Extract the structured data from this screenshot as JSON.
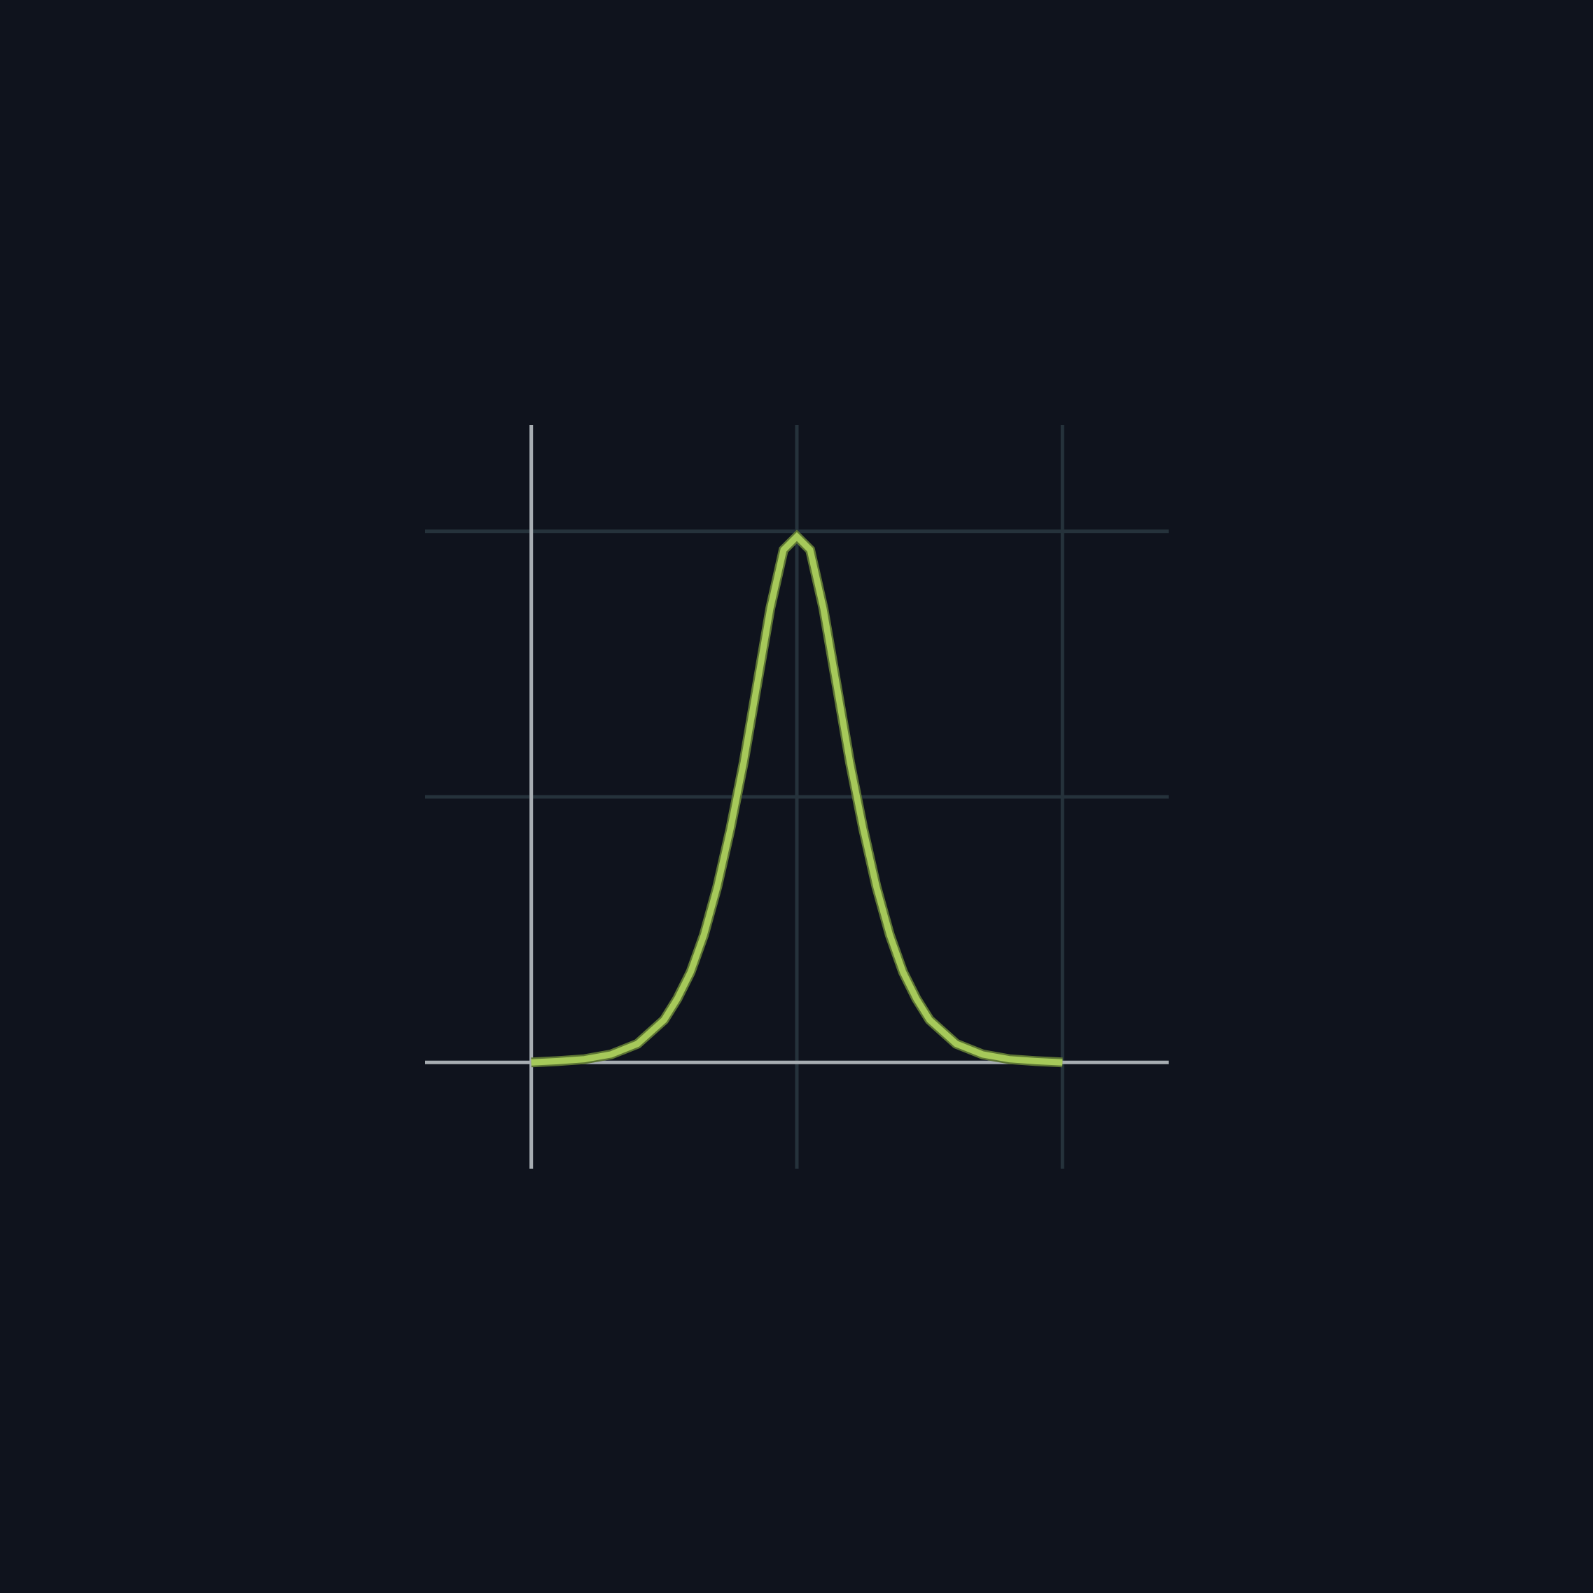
{
  "colors": {
    "background": "#0f131d",
    "grid": "#25323b",
    "axis": "#a7adb2",
    "curve": "#a6c95a",
    "curve_edge": "#5d7534"
  },
  "chart_data": {
    "type": "line",
    "title": "",
    "xlabel": "",
    "ylabel": "",
    "grid": true,
    "xlim": [
      -1.4,
      1.4
    ],
    "ylim": [
      -0.4,
      2.4
    ],
    "x_gridlines": [
      0,
      1,
      2
    ],
    "y_gridlines": [
      0,
      1,
      2
    ],
    "x_axis_at": 0,
    "y_axis_at": -1,
    "series": [
      {
        "x": [
          -1,
          -0.9,
          -0.8,
          -0.7,
          -0.6,
          -0.5,
          -0.45,
          -0.4,
          -0.35,
          -0.3,
          -0.25,
          -0.2,
          -0.15,
          -0.1,
          -0.05,
          0,
          0.05,
          0.1,
          0.15,
          0.2,
          0.25,
          0.3,
          0.35,
          0.4,
          0.45,
          0.5,
          0.6,
          0.7,
          0.8,
          0.9,
          1
        ],
        "y": [
          0.0,
          0.005,
          0.012,
          0.03,
          0.07,
          0.16,
          0.24,
          0.34,
          0.48,
          0.66,
          0.88,
          1.13,
          1.42,
          1.71,
          1.93,
          1.98,
          1.93,
          1.71,
          1.42,
          1.13,
          0.88,
          0.66,
          0.48,
          0.34,
          0.24,
          0.16,
          0.07,
          0.03,
          0.012,
          0.005,
          0.0
        ]
      }
    ]
  }
}
